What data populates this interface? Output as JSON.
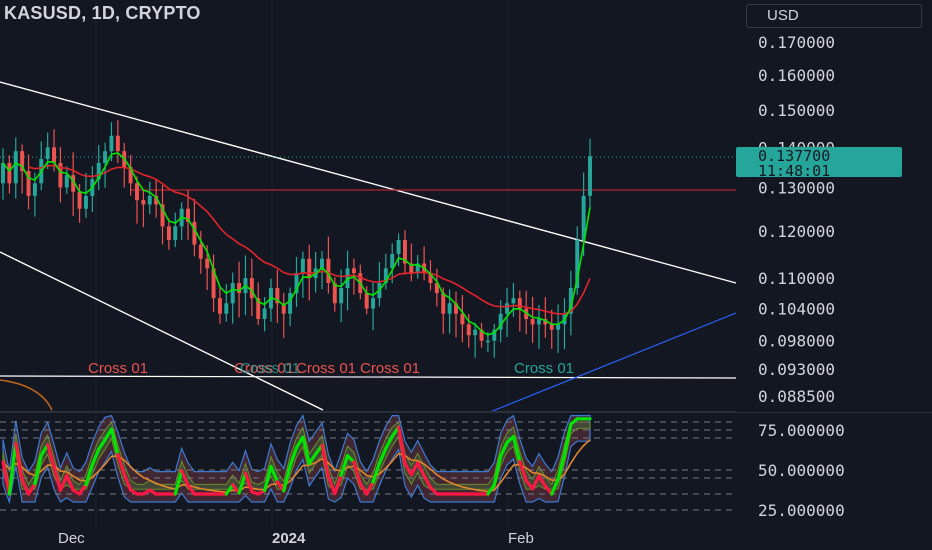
{
  "header": {
    "symbol_line": "KASUSD, 1D, CRYPTO",
    "currency": "USD"
  },
  "price_axis": {
    "ticks": [
      "0.170000",
      "0.160000",
      "0.150000",
      "0.140000",
      "0.130000",
      "0.120000",
      "0.110000",
      "0.104000",
      "0.098000",
      "0.093000",
      "0.088500"
    ]
  },
  "osc_axis": {
    "ticks": [
      "75.000000",
      "50.000000",
      "25.000000"
    ]
  },
  "time_axis": {
    "labels": [
      "Dec",
      "2024",
      "Feb"
    ]
  },
  "last_price": {
    "value": "0.137700",
    "countdown": "11:48:01"
  },
  "annotations": [
    "Cross 01",
    "Cross 01",
    "Cross 01",
    "Cross 01",
    "Cross 01",
    "Cross 01"
  ],
  "colors": {
    "background": "#131722",
    "up": "#26a69a",
    "down": "#ef5350",
    "ema_fast": "#00e600",
    "ema_slow": "#e3242b",
    "last_price_tag": "#26a69a",
    "trendline": "#ffffff",
    "blue_line": "#2962ff"
  },
  "chart_data": {
    "type": "candlestick",
    "title": "KASUSD, 1D, CRYPTO",
    "ylim": [
      0.0865,
      0.176
    ],
    "y_scale": "log",
    "last_price": 0.1377,
    "x_labels": [
      "Dec",
      "2024",
      "Feb"
    ],
    "closes": [
      0.136,
      0.131,
      0.139,
      0.134,
      0.128,
      0.131,
      0.137,
      0.14,
      0.136,
      0.13,
      0.133,
      0.129,
      0.125,
      0.128,
      0.132,
      0.136,
      0.139,
      0.143,
      0.139,
      0.135,
      0.131,
      0.127,
      0.126,
      0.128,
      0.126,
      0.121,
      0.118,
      0.121,
      0.125,
      0.122,
      0.117,
      0.114,
      0.112,
      0.106,
      0.103,
      0.105,
      0.109,
      0.107,
      0.11,
      0.106,
      0.102,
      0.104,
      0.108,
      0.105,
      0.103,
      0.107,
      0.111,
      0.114,
      0.11,
      0.112,
      0.114,
      0.109,
      0.105,
      0.108,
      0.112,
      0.111,
      0.107,
      0.104,
      0.106,
      0.109,
      0.112,
      0.115,
      0.118,
      0.113,
      0.111,
      0.113,
      0.111,
      0.109,
      0.107,
      0.103,
      0.105,
      0.103,
      0.101,
      0.099,
      0.1,
      0.098,
      0.098,
      0.1,
      0.103,
      0.105,
      0.106,
      0.104,
      0.102,
      0.101,
      0.102,
      0.101,
      0.1,
      0.101,
      0.103,
      0.108,
      0.118,
      0.128,
      0.1377
    ],
    "oscillator": {
      "ylim": [
        15,
        85
      ],
      "levels": [
        80,
        75,
        70,
        50,
        45,
        35,
        25
      ]
    }
  }
}
